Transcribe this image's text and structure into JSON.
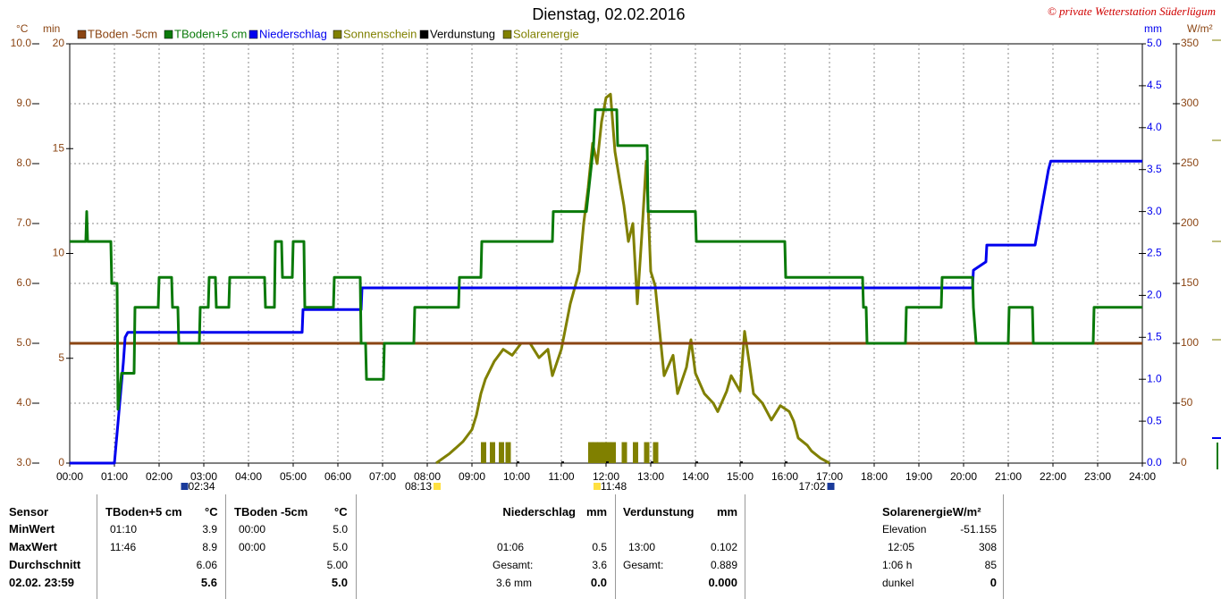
{
  "chart_data": {
    "type": "line",
    "title": "Dienstag, 02.02.2016",
    "copyright": "© private Wetterstation Süderlügum",
    "ylabel": "°C",
    "y3label": "min",
    "y2label": "mm",
    "y4label": "W/m²",
    "grid": true,
    "xlim": [
      0,
      24
    ],
    "xticks": [
      {
        "value": 0,
        "label": "00:00"
      },
      {
        "value": 1,
        "label": "01:00"
      },
      {
        "value": 2,
        "label": "02:00"
      },
      {
        "value": 3,
        "label": "03:00"
      },
      {
        "value": 4,
        "label": "04:00"
      },
      {
        "value": 5,
        "label": "05:00"
      },
      {
        "value": 6,
        "label": "06:00"
      },
      {
        "value": 7,
        "label": "07:00"
      },
      {
        "value": 8,
        "label": "08:00"
      },
      {
        "value": 9,
        "label": "09:00"
      },
      {
        "value": 10,
        "label": "10:00"
      },
      {
        "value": 11,
        "label": "11:00"
      },
      {
        "value": 12,
        "label": "12:00"
      },
      {
        "value": 13,
        "label": "13:00"
      },
      {
        "value": 14,
        "label": "14:00"
      },
      {
        "value": 15,
        "label": "15:00"
      },
      {
        "value": 16,
        "label": "16:00"
      },
      {
        "value": 17,
        "label": "17:00"
      },
      {
        "value": 18,
        "label": "18:00"
      },
      {
        "value": 19,
        "label": "19:00"
      },
      {
        "value": 20,
        "label": "20:00"
      },
      {
        "value": 21,
        "label": "21:00"
      },
      {
        "value": 22,
        "label": "22:00"
      },
      {
        "value": 23,
        "label": "23:00"
      },
      {
        "value": 24,
        "label": "24:00"
      }
    ],
    "ylim": [
      3,
      10
    ],
    "yticks": [
      {
        "value": 3,
        "label": "3.0"
      },
      {
        "value": 4,
        "label": "4.0"
      },
      {
        "value": 5,
        "label": "5.0"
      },
      {
        "value": 6,
        "label": "6.0"
      },
      {
        "value": 7,
        "label": "7.0"
      },
      {
        "value": 8,
        "label": "8.0"
      },
      {
        "value": 9,
        "label": "9.0"
      },
      {
        "value": 10,
        "label": "10.0"
      }
    ],
    "y3lim": [
      0,
      20
    ],
    "y3ticks": [
      0,
      5,
      10,
      15,
      20
    ],
    "y2lim": [
      0,
      5
    ],
    "y2ticks": [
      {
        "value": 0,
        "label": "0.0"
      },
      {
        "value": 0.5,
        "label": "0.5"
      },
      {
        "value": 1,
        "label": "1.0"
      },
      {
        "value": 1.5,
        "label": "1.5"
      },
      {
        "value": 2,
        "label": "2.0"
      },
      {
        "value": 2.5,
        "label": "2.5"
      },
      {
        "value": 3,
        "label": "3.0"
      },
      {
        "value": 3.5,
        "label": "3.5"
      },
      {
        "value": 4,
        "label": "4.0"
      },
      {
        "value": 4.5,
        "label": "4.5"
      },
      {
        "value": 5,
        "label": "5.0"
      }
    ],
    "y4lim": [
      0,
      350
    ],
    "y4ticks": [
      0,
      50,
      100,
      150,
      200,
      250,
      300,
      350
    ],
    "series": [
      {
        "name": "TBoden -5cm",
        "color": "#8b4513",
        "type": "line",
        "axis": "y",
        "x": [
          0,
          24
        ],
        "values": [
          5.0,
          5.0
        ]
      },
      {
        "name": "TBoden+5 cm",
        "color": "#0a7a0a",
        "type": "line",
        "axis": "y",
        "x": [
          0,
          0.36,
          0.38,
          0.4,
          0.92,
          0.94,
          1.06,
          1.08,
          1.16,
          1.44,
          1.46,
          1.98,
          2.0,
          2.28,
          2.3,
          2.42,
          2.44,
          2.9,
          2.92,
          3.1,
          3.12,
          3.26,
          3.28,
          3.56,
          3.58,
          4.36,
          4.38,
          4.58,
          4.6,
          4.74,
          4.76,
          4.98,
          5.0,
          5.24,
          5.26,
          5.9,
          5.92,
          6.5,
          6.52,
          6.62,
          6.64,
          7.02,
          7.04,
          7.7,
          7.72,
          8.7,
          8.72,
          9.2,
          9.22,
          10.8,
          10.82,
          11.56,
          11.72,
          11.76,
          12.24,
          12.26,
          12.92,
          12.94,
          14.0,
          14.02,
          16.0,
          16.02,
          17.74,
          17.76,
          17.82,
          17.84,
          18.7,
          18.72,
          19.5,
          19.52,
          20.2,
          20.22,
          20.28,
          21.0,
          21.02,
          21.54,
          21.56,
          22.9,
          22.92,
          24
        ],
        "values": [
          6.7,
          6.7,
          7.2,
          6.7,
          6.7,
          6.0,
          6.0,
          3.9,
          4.5,
          4.5,
          5.6,
          5.6,
          6.1,
          6.1,
          5.6,
          5.6,
          5.0,
          5.0,
          5.6,
          5.6,
          6.1,
          6.1,
          5.6,
          5.6,
          6.1,
          6.1,
          5.6,
          5.6,
          6.7,
          6.7,
          6.1,
          6.1,
          6.7,
          6.7,
          5.6,
          5.6,
          6.1,
          6.1,
          5.0,
          5.0,
          4.4,
          4.4,
          5.0,
          5.0,
          5.6,
          5.6,
          6.1,
          6.1,
          6.7,
          6.7,
          7.2,
          7.2,
          8.3,
          8.9,
          8.9,
          8.3,
          8.3,
          7.2,
          7.2,
          6.7,
          6.7,
          6.1,
          6.1,
          5.6,
          5.6,
          5.0,
          5.0,
          5.6,
          5.6,
          6.1,
          6.1,
          5.6,
          5.0,
          5.0,
          5.6,
          5.6,
          5.0,
          5.0,
          5.6,
          5.6
        ]
      },
      {
        "name": "Niederschlag",
        "color": "#0000ee",
        "type": "line",
        "axis": "y2",
        "x": [
          0,
          1.0,
          1.1,
          1.2,
          1.24,
          1.3,
          5.2,
          5.22,
          6.52,
          6.54,
          20.2,
          20.22,
          20.5,
          20.52,
          21.6,
          21.7,
          21.8,
          21.9,
          21.95,
          24
        ],
        "values": [
          0,
          0,
          0.6,
          1.2,
          1.5,
          1.56,
          1.56,
          1.83,
          1.83,
          2.09,
          2.09,
          2.3,
          2.4,
          2.6,
          2.6,
          2.9,
          3.2,
          3.5,
          3.6,
          3.6
        ]
      },
      {
        "name": "Sonnenschein",
        "color": "#808000",
        "type": "bar",
        "axis": "y3",
        "x": [
          9.2,
          9.4,
          9.6,
          9.75,
          11.6,
          11.7,
          11.8,
          11.9,
          12.0,
          12.1,
          12.35,
          12.6,
          12.85,
          13.05
        ],
        "values": [
          1,
          1,
          1,
          1,
          1,
          1,
          1,
          1,
          1,
          1,
          1,
          1,
          1,
          1
        ]
      },
      {
        "name": "Verdunstung",
        "color": "#000000",
        "type": "bar",
        "axis": "y2",
        "x": [
          10,
          11,
          12,
          13,
          14,
          15,
          16
        ],
        "values": [
          0.02,
          0.02,
          0.02,
          0.02,
          0.02,
          0.02,
          0.02
        ]
      },
      {
        "name": "Solarenergie",
        "color": "#808000",
        "type": "line",
        "axis": "y4",
        "x": [
          8.2,
          8.5,
          8.8,
          9.0,
          9.1,
          9.2,
          9.3,
          9.5,
          9.7,
          9.9,
          10.1,
          10.3,
          10.5,
          10.7,
          10.8,
          11.0,
          11.2,
          11.4,
          11.5,
          11.6,
          11.7,
          11.8,
          11.9,
          12.0,
          12.1,
          12.2,
          12.3,
          12.4,
          12.5,
          12.6,
          12.7,
          12.8,
          12.9,
          13.0,
          13.1,
          13.2,
          13.3,
          13.5,
          13.6,
          13.8,
          13.9,
          14.0,
          14.2,
          14.4,
          14.5,
          14.7,
          14.8,
          15.0,
          15.1,
          15.2,
          15.3,
          15.5,
          15.7,
          15.9,
          16.1,
          16.2,
          16.3,
          16.5,
          16.6,
          16.8,
          17.0
        ],
        "values": [
          0,
          8,
          18,
          28,
          40,
          58,
          70,
          85,
          95,
          90,
          100,
          100,
          88,
          95,
          73,
          95,
          133,
          160,
          200,
          230,
          267,
          250,
          285,
          305,
          308,
          260,
          237,
          215,
          185,
          200,
          133,
          190,
          252,
          160,
          148,
          110,
          73,
          90,
          58,
          80,
          103,
          75,
          58,
          50,
          43,
          60,
          73,
          60,
          110,
          85,
          58,
          50,
          36,
          48,
          43,
          35,
          21,
          15,
          10,
          4,
          0
        ]
      }
    ],
    "annotations": [
      {
        "x": 2.57,
        "text": "02:34"
      },
      {
        "x": 8.22,
        "text": "08:13"
      },
      {
        "x": 11.8,
        "text": "11:48"
      },
      {
        "x": 17.03,
        "text": "17:02"
      }
    ]
  },
  "table": {
    "sensor": [
      "Sensor",
      "MinWert",
      "MaxWert",
      "Durchschnitt",
      "02.02. 23:59"
    ],
    "tb5": {
      "head": "TBoden+5 cm",
      "unit": "°C",
      "min_time": "01:10",
      "min": "3.9",
      "max_time": "11:46",
      "max": "8.9",
      "avg": "6.06",
      "now": "5.6"
    },
    "tbm5": {
      "head": "TBoden -5cm",
      "unit": "°C",
      "min_time": "00:00",
      "min": "5.0",
      "max_time": "00:00",
      "max": "5.0",
      "avg": "5.00",
      "now": "5.0"
    },
    "rain": {
      "head": "Niederschlag",
      "unit": "mm",
      "max_time": "01:06",
      "max": "0.5",
      "total_label": "Gesamt:",
      "total": "3.6",
      "now_label": "3.6 mm",
      "now": "0.0"
    },
    "evap": {
      "head": "Verdunstung",
      "unit": "mm",
      "max_time": "13:00",
      "max": "0.102",
      "total_label": "Gesamt:",
      "total": "0.889",
      "now": "0.000"
    },
    "solar": {
      "head": "SolarenergieW/m²",
      "elev_label": "Elevation",
      "elev": "-51.155",
      "max_time": "12:05",
      "max": "308",
      "sun_label": "1:06 h",
      "sun": "85",
      "dark_label": "dunkel",
      "now": "0"
    }
  }
}
